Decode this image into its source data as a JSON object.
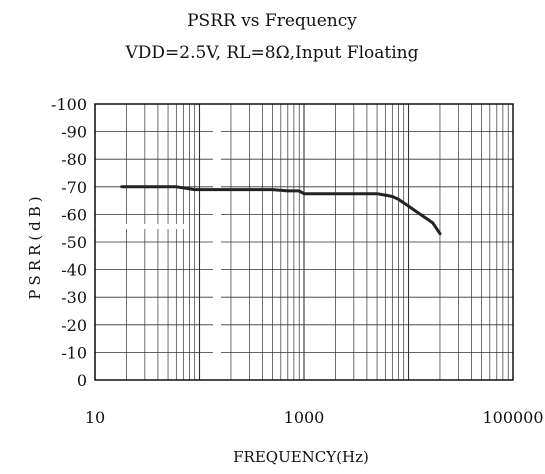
{
  "chart_data": {
    "type": "line",
    "title": "PSRR vs Frequency",
    "subtitle": "VDD=2.5V, RL=8Ω,Input Floating",
    "xlabel": "FREQUENCY(Hz)",
    "ylabel": "PSRR(dB)",
    "x_scale": "log",
    "xlim": [
      10,
      100000
    ],
    "ylim": [
      0,
      -100
    ],
    "x_tick_labels": [
      "10",
      "1000",
      "100000"
    ],
    "y_tick_labels": [
      "-100",
      "-90",
      "-80",
      "-70",
      "-60",
      "-50",
      "-40",
      "-30",
      "-20",
      "-10",
      "0"
    ],
    "grid": true,
    "series": [
      {
        "x": [
          18,
          40,
          60,
          90,
          130,
          150,
          300,
          500,
          700,
          900,
          1000,
          1500,
          2000,
          3000,
          4000,
          5000,
          6000,
          7000,
          8000,
          10000,
          13000,
          17000,
          20000
        ],
        "y": [
          -70,
          -70,
          -70,
          -69,
          -69,
          -69,
          -69,
          -69,
          -68.5,
          -68.5,
          -67.5,
          -67.5,
          -67.5,
          -67.5,
          -67.5,
          -67.5,
          -67,
          -66.5,
          -65.5,
          -63,
          -60,
          -57,
          -53
        ]
      }
    ]
  }
}
